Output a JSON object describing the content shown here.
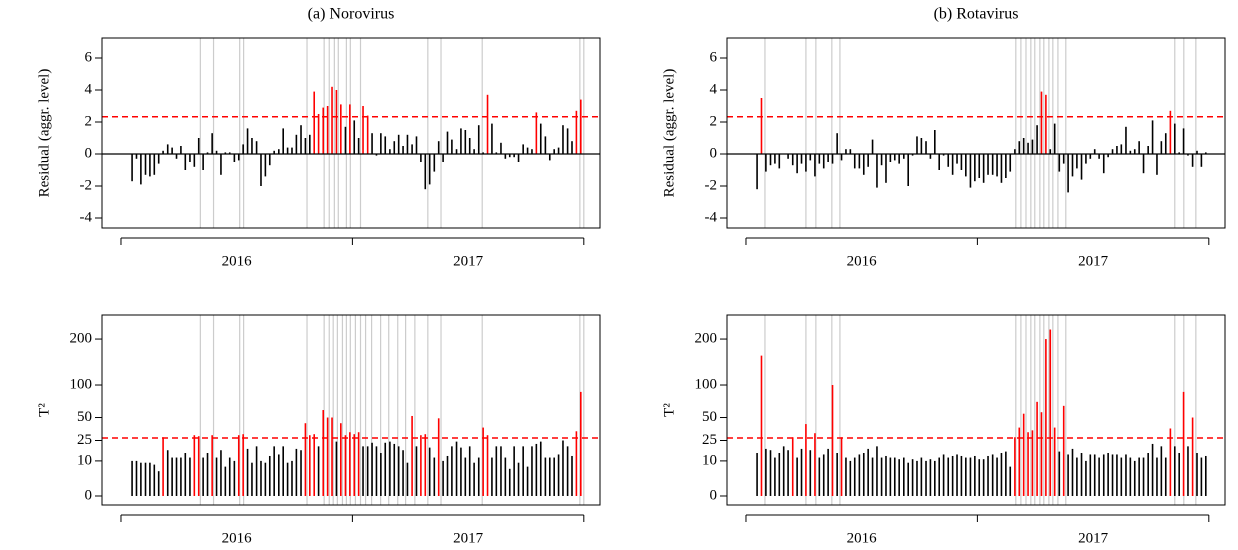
{
  "chart_data": {
    "x": [
      2016.048,
      2016.067,
      2016.086,
      2016.106,
      2016.125,
      2016.144,
      2016.163,
      2016.182,
      2016.202,
      2016.221,
      2016.24,
      2016.259,
      2016.278,
      2016.298,
      2016.317,
      2016.336,
      2016.355,
      2016.374,
      2016.394,
      2016.413,
      2016.432,
      2016.451,
      2016.47,
      2016.49,
      2016.509,
      2016.528,
      2016.547,
      2016.566,
      2016.586,
      2016.605,
      2016.624,
      2016.643,
      2016.662,
      2016.682,
      2016.701,
      2016.72,
      2016.739,
      2016.758,
      2016.778,
      2016.797,
      2016.816,
      2016.835,
      2016.854,
      2016.874,
      2016.893,
      2016.912,
      2016.931,
      2016.95,
      2016.97,
      2016.989,
      2017.008,
      2017.027,
      2017.046,
      2017.066,
      2017.085,
      2017.104,
      2017.123,
      2017.142,
      2017.162,
      2017.181,
      2017.2,
      2017.219,
      2017.238,
      2017.258,
      2017.277,
      2017.296,
      2017.315,
      2017.334,
      2017.354,
      2017.373,
      2017.392,
      2017.411,
      2017.43,
      2017.45,
      2017.469,
      2017.488,
      2017.507,
      2017.526,
      2017.546,
      2017.565,
      2017.584,
      2017.603,
      2017.622,
      2017.642,
      2017.661,
      2017.68,
      2017.699,
      2017.718,
      2017.738,
      2017.757,
      2017.776,
      2017.795,
      2017.814,
      2017.834,
      2017.853,
      2017.872,
      2017.891,
      2017.91,
      2017.93,
      2017.949,
      2017.968,
      2017.987
    ],
    "xlim": [
      2015.918,
      2018.07
    ],
    "xticks": [
      2016,
      2017,
      2018
    ],
    "year_labels": [
      {
        "value": 2016.5,
        "label": "2016"
      },
      {
        "value": 2017.5,
        "label": "2017"
      }
    ],
    "panels": [
      {
        "type": "spike",
        "title": "(a) Norovirus",
        "ylabel": "Residual (aggr. level)",
        "yscale": "linear",
        "ylim": [
          -4.625,
          7.25
        ],
        "yticks": [
          -4,
          -2,
          0,
          2,
          4,
          6
        ],
        "threshold": 2.33,
        "zero_line": true,
        "color": "#000000",
        "alarm_color": "#ff0000",
        "threshold_color": "#ff0000",
        "vline_color": "#cccccc",
        "vlines": [
          2016.343,
          2016.4,
          2016.513,
          2016.53,
          2016.804,
          2016.878,
          2016.9,
          2016.922,
          2016.939,
          2016.974,
          2016.991,
          2017.035,
          2017.326,
          2017.383,
          2017.561,
          2017.983,
          2018.0
        ],
        "values": [
          -1.7,
          -0.3,
          -1.9,
          -1.3,
          -1.4,
          -1.3,
          -0.6,
          0.2,
          0.6,
          0.4,
          -0.3,
          0.5,
          -1.0,
          -0.5,
          -0.8,
          1.0,
          -1.0,
          0.1,
          1.3,
          0.2,
          -1.3,
          0.1,
          0.1,
          -0.5,
          -0.4,
          0.6,
          1.6,
          1.0,
          0.8,
          -2.0,
          -1.4,
          -0.7,
          0.2,
          0.3,
          1.6,
          0.4,
          0.4,
          1.2,
          1.8,
          1.0,
          1.2,
          3.9,
          2.5,
          2.9,
          3.0,
          4.2,
          4.0,
          3.1,
          1.7,
          3.1,
          2.1,
          1.0,
          3.0,
          2.4,
          1.3,
          -0.1,
          1.3,
          1.1,
          0.3,
          0.8,
          1.2,
          0.5,
          1.2,
          0.6,
          1.1,
          -0.5,
          -2.2,
          -1.9,
          -1.1,
          0.8,
          -0.5,
          1.4,
          0.9,
          0.3,
          1.6,
          1.5,
          1.0,
          0.3,
          1.8,
          0.1,
          3.7,
          1.9,
          0.1,
          0.7,
          -0.3,
          -0.2,
          -0.2,
          -0.5,
          0.6,
          0.4,
          0.3,
          2.6,
          1.9,
          1.1,
          -0.4,
          0.3,
          0.4,
          1.8,
          1.6,
          0.8,
          2.7,
          3.4
        ]
      },
      {
        "type": "spike",
        "ylabel": "T²",
        "yscale": "sqrt",
        "ylim": [
          -0.66,
          266
        ],
        "yticks": [
          0,
          10,
          25,
          50,
          100,
          200
        ],
        "threshold": 27.3,
        "zero_line": false,
        "color": "#000000",
        "alarm_color": "#ff0000",
        "threshold_color": "#ff0000",
        "vline_color": "#cccccc",
        "vlines": [
          2016.343,
          2016.4,
          2016.513,
          2016.53,
          2016.804,
          2016.878,
          2016.9,
          2016.917,
          2016.935,
          2016.957,
          2016.974,
          2016.991,
          2017.013,
          2017.035,
          2017.057,
          2017.083,
          2017.122,
          2017.157,
          2017.196,
          2017.23,
          2017.27,
          2017.326,
          2017.383,
          2017.561,
          2017.983,
          2018.0
        ],
        "values": [
          10,
          10,
          9,
          9,
          9,
          8,
          5,
          28,
          17,
          12,
          12,
          12,
          15,
          12,
          30,
          29,
          12,
          15,
          30,
          12,
          17,
          7,
          12,
          10,
          30,
          31,
          18,
          9,
          20,
          10,
          9,
          13,
          20,
          14,
          20,
          9,
          10,
          18,
          17,
          43,
          30,
          31,
          20,
          60,
          50,
          50,
          24,
          43,
          30,
          33,
          31,
          33,
          20,
          20,
          23,
          20,
          15,
          23,
          24,
          22,
          20,
          17,
          9,
          52,
          20,
          30,
          31,
          19,
          12,
          49,
          10,
          13,
          20,
          24,
          19,
          12,
          20,
          9,
          12,
          38,
          30,
          12,
          20,
          20,
          12,
          6,
          20,
          9,
          20,
          7,
          20,
          22,
          24,
          12,
          12,
          12,
          14,
          25,
          20,
          13,
          34,
          88
        ]
      },
      {
        "type": "spike",
        "title": "(b) Rotavirus",
        "ylabel": "Residual (aggr. level)",
        "yscale": "linear",
        "ylim": [
          -4.625,
          7.25
        ],
        "yticks": [
          -4,
          -2,
          0,
          2,
          4,
          6
        ],
        "threshold": 2.33,
        "zero_line": true,
        "color": "#000000",
        "alarm_color": "#ff0000",
        "threshold_color": "#ff0000",
        "vline_color": "#cccccc",
        "vlines": [
          2016.082,
          2016.259,
          2016.302,
          2016.371,
          2016.406,
          2017.166,
          2017.188,
          2017.21,
          2017.231,
          2017.248,
          2017.27,
          2017.287,
          2017.309,
          2017.326,
          2017.348,
          2017.382,
          2017.853,
          2017.892,
          2017.944
        ],
        "values": [
          -2.2,
          3.5,
          -1.1,
          -0.7,
          -0.6,
          -0.9,
          0.0,
          -0.3,
          -0.7,
          -1.2,
          -0.6,
          -1.1,
          -0.4,
          -1.4,
          -0.6,
          -0.9,
          -0.5,
          -0.6,
          1.3,
          -0.4,
          0.3,
          0.3,
          -0.9,
          -0.9,
          -1.3,
          -0.8,
          0.9,
          -2.1,
          -0.7,
          -1.8,
          -0.5,
          -0.4,
          -0.6,
          -0.3,
          -2.0,
          -0.1,
          1.1,
          1.0,
          0.8,
          -0.3,
          1.5,
          -1.0,
          -0.1,
          -0.8,
          -1.3,
          -0.6,
          -1.0,
          -1.4,
          -2.1,
          -1.7,
          -1.5,
          -1.8,
          -1.3,
          -1.3,
          -1.4,
          -1.8,
          -1.5,
          -1.1,
          0.3,
          0.8,
          1.0,
          0.7,
          0.9,
          1.8,
          3.9,
          3.7,
          0.3,
          1.9,
          -1.1,
          -0.6,
          -2.4,
          -1.4,
          -0.9,
          -1.6,
          -0.6,
          -0.3,
          0.3,
          -0.3,
          -1.2,
          -0.2,
          0.3,
          0.5,
          0.6,
          1.7,
          0.2,
          0.3,
          0.8,
          -1.2,
          0.5,
          2.1,
          -1.3,
          0.8,
          1.3,
          2.7,
          1.9,
          0.1,
          1.6,
          -0.1,
          -0.8,
          0.2,
          -0.8,
          0.1
        ]
      },
      {
        "type": "spike",
        "ylabel": "T²",
        "yscale": "sqrt",
        "ylim": [
          -0.66,
          266
        ],
        "yticks": [
          0,
          10,
          25,
          50,
          100,
          200
        ],
        "threshold": 27.3,
        "zero_line": false,
        "color": "#000000",
        "alarm_color": "#ff0000",
        "threshold_color": "#ff0000",
        "vline_color": "#cccccc",
        "vlines": [
          2016.082,
          2016.259,
          2016.302,
          2016.371,
          2016.406,
          2017.166,
          2017.188,
          2017.21,
          2017.231,
          2017.248,
          2017.27,
          2017.287,
          2017.309,
          2017.326,
          2017.348,
          2017.382,
          2017.853,
          2017.892,
          2017.944
        ],
        "values": [
          15,
          160,
          18,
          17,
          12,
          15,
          20,
          17,
          28,
          12,
          18,
          42,
          17,
          32,
          12,
          14,
          18,
          100,
          15,
          28,
          12,
          10,
          12,
          14,
          15,
          18,
          12,
          20,
          12,
          13,
          12,
          12,
          11,
          12,
          9,
          11,
          10,
          12,
          10,
          11,
          10,
          12,
          14,
          12,
          13,
          14,
          13,
          12,
          12,
          13,
          11,
          11,
          13,
          14,
          12,
          15,
          16,
          7,
          28,
          38,
          55,
          33,
          35,
          72,
          57,
          200,
          225,
          38,
          16,
          66,
          14,
          18,
          12,
          15,
          10,
          14,
          14,
          12,
          14,
          15,
          14,
          14,
          12,
          14,
          12,
          10,
          12,
          12,
          15,
          22,
          12,
          20,
          12,
          37,
          20,
          15,
          88,
          20,
          50,
          15,
          12,
          13
        ]
      }
    ]
  }
}
